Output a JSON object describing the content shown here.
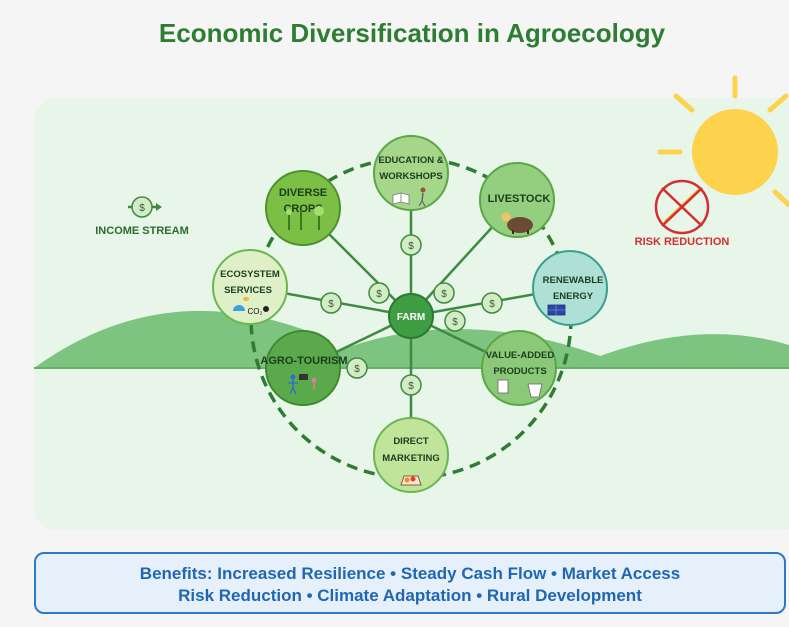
{
  "title": "Economic Diversification in Agroecology",
  "center": {
    "label": "FARM"
  },
  "nodes": [
    {
      "id": "education",
      "line1": "EDUCATION &",
      "line2": "WORKSHOPS",
      "icon": "book-person-icon"
    },
    {
      "id": "diverse-crops",
      "line1": "DIVERSE",
      "line2": "CROPS",
      "icon": "crops-icon"
    },
    {
      "id": "livestock",
      "line1": "LIVESTOCK",
      "line2": "",
      "icon": "livestock-icon"
    },
    {
      "id": "ecosystem",
      "line1": "ECOSYSTEM",
      "line2": "SERVICES",
      "extra": "CO₂",
      "icon": "bee-co2-icon"
    },
    {
      "id": "renewable",
      "line1": "RENEWABLE",
      "line2": "ENERGY",
      "icon": "solar-panel-icon"
    },
    {
      "id": "agro-tourism",
      "line1": "AGRO-TOURISM",
      "line2": "",
      "icon": "tourists-icon"
    },
    {
      "id": "value-added",
      "line1": "VALUE-ADDED",
      "line2": "PRODUCTS",
      "icon": "jars-icon"
    },
    {
      "id": "direct-marketing",
      "line1": "DIRECT",
      "line2": "MARKETING",
      "icon": "market-basket-icon"
    }
  ],
  "coin_symbol": "$",
  "legend": {
    "income_stream": "INCOME STREAM",
    "risk_reduction": "RISK REDUCTION"
  },
  "benefits": {
    "line1": "Benefits: Increased Resilience • Steady Cash Flow • Market Access",
    "line2": "Risk Reduction • Climate Adaptation • Rural Development"
  },
  "colors": {
    "title": "#2e7d32",
    "ring": "#2e7d32",
    "hills": "#7cc47f",
    "panel": "#e8f5e9",
    "sun": "#fdd34d",
    "risk": "#d32f2f",
    "benefits_text": "#2067b3"
  }
}
